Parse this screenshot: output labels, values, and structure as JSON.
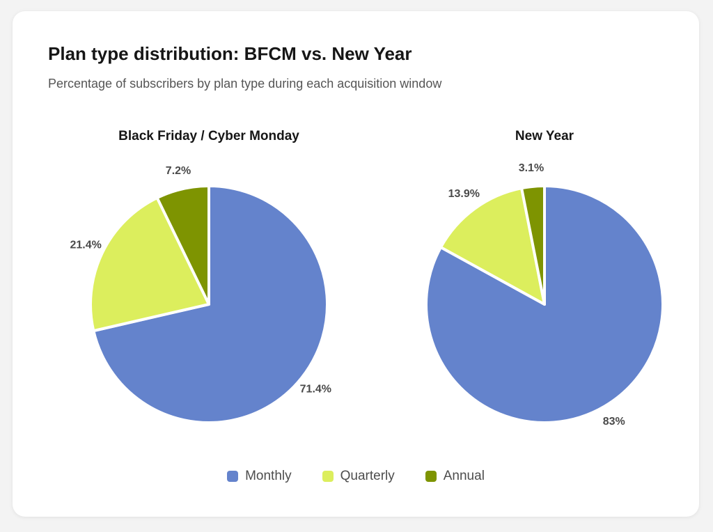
{
  "title": "Plan type distribution: BFCM vs. New Year",
  "subtitle": "Percentage of subscribers by plan type during each acquisition window",
  "colors": {
    "Monthly": "#6483cc",
    "Quarterly": "#dcee5d",
    "Annual": "#7e9401"
  },
  "chart_data": [
    {
      "type": "pie",
      "title": "Black Friday / Cyber Monday",
      "categories": [
        "Monthly",
        "Quarterly",
        "Annual"
      ],
      "values": [
        71.4,
        21.4,
        7.2
      ],
      "labels": [
        "71.4%",
        "21.4%",
        "7.2%"
      ]
    },
    {
      "type": "pie",
      "title": "New Year",
      "categories": [
        "Monthly",
        "Quarterly",
        "Annual"
      ],
      "values": [
        83,
        13.9,
        3.1
      ],
      "labels": [
        "83%",
        "13.9%",
        "3.1%"
      ]
    }
  ],
  "legend": {
    "placement": "bottom-center",
    "items": [
      "Monthly",
      "Quarterly",
      "Annual"
    ]
  }
}
